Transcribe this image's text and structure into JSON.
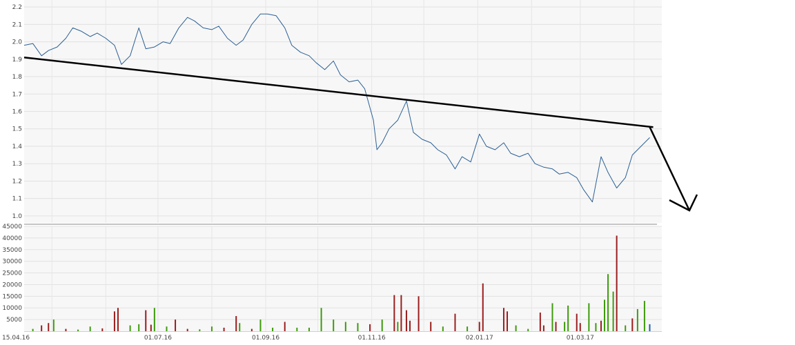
{
  "chart_data": [
    {
      "type": "line",
      "title": "",
      "xlabel": "",
      "ylabel": "",
      "ylim": [
        0.96,
        2.24
      ],
      "yticks": [
        "2.2",
        "2.1",
        "2.0",
        "1.9",
        "1.8",
        "1.7",
        "1.6",
        "1.5",
        "1.4",
        "1.3",
        "1.2",
        "1.1",
        "1.0"
      ],
      "grid": true,
      "series": [
        {
          "color": "#2a5f94",
          "x": [
            "2016-04-15",
            "2016-04-20",
            "2016-04-25",
            "2016-04-29",
            "2016-05-04",
            "2016-05-09",
            "2016-05-13",
            "2016-05-18",
            "2016-05-23",
            "2016-05-27",
            "2016-06-01",
            "2016-06-06",
            "2016-06-10",
            "2016-06-15",
            "2016-06-20",
            "2016-06-24",
            "2016-06-29",
            "2016-07-04",
            "2016-07-08",
            "2016-07-13",
            "2016-07-18",
            "2016-07-22",
            "2016-07-27",
            "2016-08-01",
            "2016-08-05",
            "2016-08-10",
            "2016-08-15",
            "2016-08-19",
            "2016-08-24",
            "2016-08-29",
            "2016-09-02",
            "2016-09-07",
            "2016-09-12",
            "2016-09-16",
            "2016-09-21",
            "2016-09-26",
            "2016-09-30",
            "2016-10-05",
            "2016-10-10",
            "2016-10-14",
            "2016-10-19",
            "2016-10-24",
            "2016-10-28",
            "2016-11-02",
            "2016-11-04",
            "2016-11-07",
            "2016-11-11",
            "2016-11-16",
            "2016-11-21",
            "2016-11-25",
            "2016-11-30",
            "2016-12-05",
            "2016-12-09",
            "2016-12-14",
            "2016-12-19",
            "2016-12-23",
            "2016-12-28",
            "2017-01-02",
            "2017-01-06",
            "2017-01-11",
            "2017-01-16",
            "2017-01-20",
            "2017-01-25",
            "2017-01-30",
            "2017-02-03",
            "2017-02-08",
            "2017-02-13",
            "2017-02-17",
            "2017-02-22",
            "2017-02-27",
            "2017-03-03",
            "2017-03-08",
            "2017-03-13",
            "2017-03-17",
            "2017-03-22",
            "2017-03-27",
            "2017-03-31",
            "2017-04-05",
            "2017-04-10"
          ],
          "y": [
            1.98,
            1.99,
            1.92,
            1.95,
            1.97,
            2.02,
            2.08,
            2.06,
            2.03,
            2.05,
            2.02,
            1.98,
            1.87,
            1.92,
            2.08,
            1.96,
            1.97,
            2.0,
            1.99,
            2.08,
            2.14,
            2.12,
            2.08,
            2.07,
            2.09,
            2.02,
            1.98,
            2.01,
            2.1,
            2.16,
            2.16,
            2.15,
            2.08,
            1.98,
            1.94,
            1.92,
            1.88,
            1.84,
            1.89,
            1.81,
            1.77,
            1.78,
            1.73,
            1.55,
            1.38,
            1.42,
            1.5,
            1.55,
            1.66,
            1.48,
            1.44,
            1.42,
            1.38,
            1.35,
            1.27,
            1.34,
            1.31,
            1.47,
            1.4,
            1.38,
            1.42,
            1.36,
            1.34,
            1.36,
            1.3,
            1.28,
            1.27,
            1.24,
            1.25,
            1.22,
            1.15,
            1.08,
            1.34,
            1.25,
            1.16,
            1.22,
            1.35,
            1.4,
            1.45
          ]
        }
      ],
      "trendline": {
        "x": [
          "2016-04-15",
          "2017-04-12"
        ],
        "y": [
          1.91,
          1.51
        ],
        "color": "#000000"
      }
    },
    {
      "type": "bar",
      "title": "",
      "xlabel": "",
      "ylabel": "",
      "ylim": [
        0,
        45000
      ],
      "yticks": [
        "45000",
        "40000",
        "35000",
        "30000",
        "25000",
        "20000",
        "15000",
        "10000",
        "5000"
      ],
      "xticks": [
        {
          "x": "2016-04-15",
          "label": "15.04.16"
        },
        {
          "x": "2016-07-01",
          "label": "01.07.16"
        },
        {
          "x": "2016-09-01",
          "label": "01.09.16"
        },
        {
          "x": "2016-11-01",
          "label": "01.11.16"
        },
        {
          "x": "2017-01-02",
          "label": "02.01.17"
        },
        {
          "x": "2017-03-01",
          "label": "01.03.17"
        }
      ],
      "grid": true,
      "colors": {
        "up": "#3d9a0b",
        "down": "#9b1c1c",
        "last": "#1f5fa8"
      },
      "bars": [
        {
          "x": "2016-04-20",
          "v": 1000,
          "d": "up"
        },
        {
          "x": "2016-04-25",
          "v": 2500,
          "d": "down"
        },
        {
          "x": "2016-04-29",
          "v": 3500,
          "d": "down"
        },
        {
          "x": "2016-05-02",
          "v": 5000,
          "d": "up"
        },
        {
          "x": "2016-05-09",
          "v": 1000,
          "d": "down"
        },
        {
          "x": "2016-05-16",
          "v": 700,
          "d": "up"
        },
        {
          "x": "2016-05-23",
          "v": 2000,
          "d": "up"
        },
        {
          "x": "2016-05-30",
          "v": 1200,
          "d": "down"
        },
        {
          "x": "2016-06-06",
          "v": 8500,
          "d": "down"
        },
        {
          "x": "2016-06-08",
          "v": 10000,
          "d": "down"
        },
        {
          "x": "2016-06-15",
          "v": 2500,
          "d": "up"
        },
        {
          "x": "2016-06-20",
          "v": 3000,
          "d": "up"
        },
        {
          "x": "2016-06-24",
          "v": 9000,
          "d": "down"
        },
        {
          "x": "2016-06-27",
          "v": 2800,
          "d": "down"
        },
        {
          "x": "2016-06-29",
          "v": 10000,
          "d": "up"
        },
        {
          "x": "2016-07-06",
          "v": 2000,
          "d": "up"
        },
        {
          "x": "2016-07-11",
          "v": 5000,
          "d": "down"
        },
        {
          "x": "2016-07-18",
          "v": 1000,
          "d": "down"
        },
        {
          "x": "2016-07-25",
          "v": 800,
          "d": "up"
        },
        {
          "x": "2016-08-01",
          "v": 2000,
          "d": "up"
        },
        {
          "x": "2016-08-08",
          "v": 1500,
          "d": "down"
        },
        {
          "x": "2016-08-15",
          "v": 6500,
          "d": "down"
        },
        {
          "x": "2016-08-17",
          "v": 3500,
          "d": "up"
        },
        {
          "x": "2016-08-24",
          "v": 1000,
          "d": "down"
        },
        {
          "x": "2016-08-29",
          "v": 5000,
          "d": "up"
        },
        {
          "x": "2016-09-05",
          "v": 1500,
          "d": "up"
        },
        {
          "x": "2016-09-12",
          "v": 4000,
          "d": "down"
        },
        {
          "x": "2016-09-19",
          "v": 1500,
          "d": "up"
        },
        {
          "x": "2016-09-26",
          "v": 1500,
          "d": "up"
        },
        {
          "x": "2016-10-03",
          "v": 10000,
          "d": "up"
        },
        {
          "x": "2016-10-10",
          "v": 5000,
          "d": "up"
        },
        {
          "x": "2016-10-17",
          "v": 4000,
          "d": "up"
        },
        {
          "x": "2016-10-24",
          "v": 3500,
          "d": "up"
        },
        {
          "x": "2016-10-31",
          "v": 3000,
          "d": "down"
        },
        {
          "x": "2016-11-07",
          "v": 5000,
          "d": "up"
        },
        {
          "x": "2016-11-14",
          "v": 15500,
          "d": "down"
        },
        {
          "x": "2016-11-16",
          "v": 4000,
          "d": "up"
        },
        {
          "x": "2016-11-18",
          "v": 15500,
          "d": "down"
        },
        {
          "x": "2016-11-21",
          "v": 9000,
          "d": "down"
        },
        {
          "x": "2016-11-23",
          "v": 4500,
          "d": "down"
        },
        {
          "x": "2016-11-28",
          "v": 15000,
          "d": "down"
        },
        {
          "x": "2016-12-05",
          "v": 4000,
          "d": "down"
        },
        {
          "x": "2016-12-12",
          "v": 2000,
          "d": "up"
        },
        {
          "x": "2016-12-19",
          "v": 7500,
          "d": "down"
        },
        {
          "x": "2016-12-26",
          "v": 2000,
          "d": "up"
        },
        {
          "x": "2017-01-02",
          "v": 4000,
          "d": "down"
        },
        {
          "x": "2017-01-04",
          "v": 20500,
          "d": "down"
        },
        {
          "x": "2017-01-16",
          "v": 10000,
          "d": "down"
        },
        {
          "x": "2017-01-18",
          "v": 8500,
          "d": "down"
        },
        {
          "x": "2017-01-23",
          "v": 2500,
          "d": "up"
        },
        {
          "x": "2017-01-30",
          "v": 1000,
          "d": "up"
        },
        {
          "x": "2017-02-06",
          "v": 8000,
          "d": "down"
        },
        {
          "x": "2017-02-08",
          "v": 2500,
          "d": "down"
        },
        {
          "x": "2017-02-13",
          "v": 12000,
          "d": "up"
        },
        {
          "x": "2017-02-15",
          "v": 4000,
          "d": "down"
        },
        {
          "x": "2017-02-20",
          "v": 4000,
          "d": "up"
        },
        {
          "x": "2017-02-22",
          "v": 11000,
          "d": "up"
        },
        {
          "x": "2017-02-27",
          "v": 7500,
          "d": "down"
        },
        {
          "x": "2017-03-01",
          "v": 3500,
          "d": "down"
        },
        {
          "x": "2017-03-06",
          "v": 12000,
          "d": "up"
        },
        {
          "x": "2017-03-10",
          "v": 3500,
          "d": "up"
        },
        {
          "x": "2017-03-13",
          "v": 4500,
          "d": "down"
        },
        {
          "x": "2017-03-15",
          "v": 13500,
          "d": "up"
        },
        {
          "x": "2017-03-17",
          "v": 24500,
          "d": "up"
        },
        {
          "x": "2017-03-20",
          "v": 17000,
          "d": "up"
        },
        {
          "x": "2017-03-22",
          "v": 41000,
          "d": "down"
        },
        {
          "x": "2017-03-27",
          "v": 2500,
          "d": "up"
        },
        {
          "x": "2017-03-31",
          "v": 5500,
          "d": "down"
        },
        {
          "x": "2017-04-03",
          "v": 9500,
          "d": "up"
        },
        {
          "x": "2017-04-07",
          "v": 13000,
          "d": "up"
        },
        {
          "x": "2017-04-10",
          "v": 3000,
          "d": "last"
        }
      ]
    }
  ],
  "annotation": {
    "type": "down-arrow",
    "color": "#000000"
  }
}
